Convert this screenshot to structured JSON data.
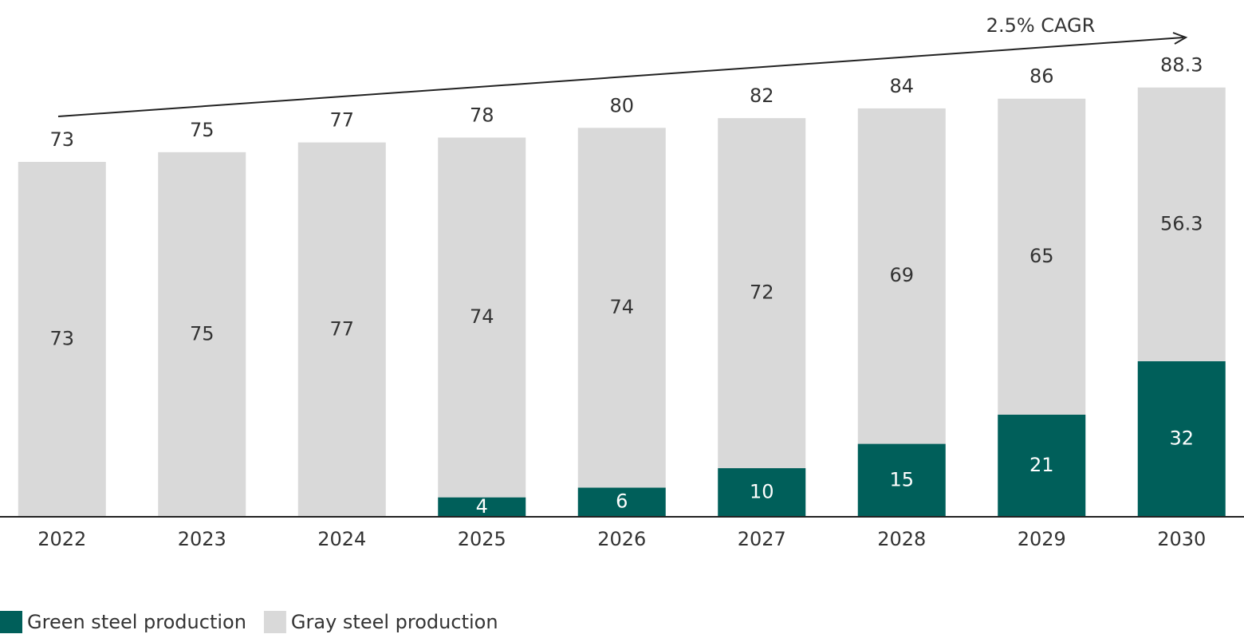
{
  "chart_data": {
    "type": "stacked_bar",
    "annotation": "2.5% CAGR",
    "categories": [
      "2022",
      "2023",
      "2024",
      "2025",
      "2026",
      "2027",
      "2028",
      "2029",
      "2030"
    ],
    "series": [
      {
        "name": "Green steel production",
        "color": "#005f5a",
        "label_color": "#ffffff",
        "values": [
          0,
          0,
          0,
          4,
          6,
          10,
          15,
          21,
          32
        ]
      },
      {
        "name": "Gray steel production",
        "color": "#d9d9d9",
        "label_color": "#333333",
        "values": [
          73,
          75,
          77,
          74,
          74,
          72,
          69,
          65,
          56.3
        ]
      }
    ],
    "totals": [
      73,
      75,
      77,
      78,
      80,
      82,
      84,
      86,
      88.3
    ],
    "ylim": [
      0,
      100
    ],
    "legend": "bottom-left"
  }
}
